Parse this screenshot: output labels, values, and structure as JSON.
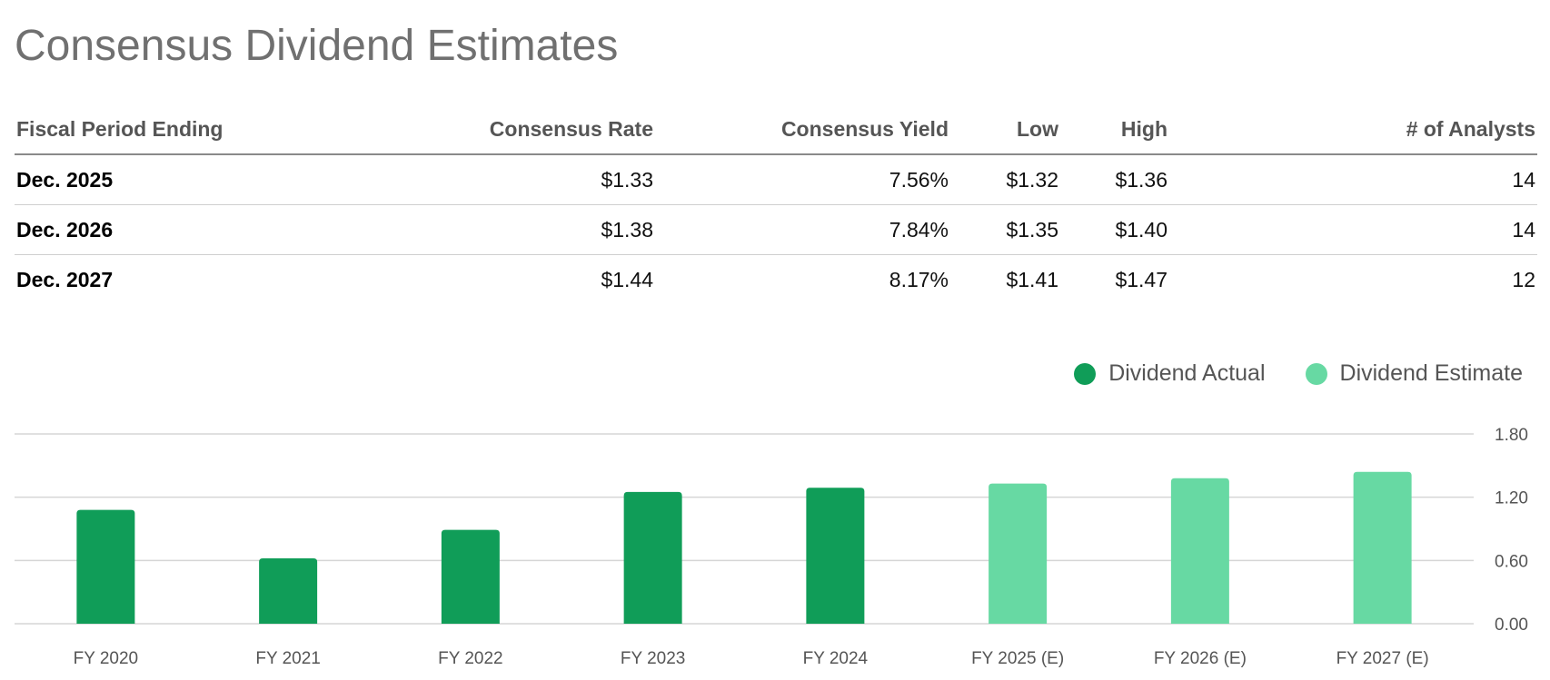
{
  "title": "Consensus Dividend Estimates",
  "table": {
    "headers": [
      "Fiscal Period Ending",
      "Consensus Rate",
      "Consensus Yield",
      "Low",
      "High",
      "# of Analysts"
    ],
    "rows": [
      [
        "Dec. 2025",
        "$1.33",
        "7.56%",
        "$1.32",
        "$1.36",
        "14"
      ],
      [
        "Dec. 2026",
        "$1.38",
        "7.84%",
        "$1.35",
        "$1.40",
        "14"
      ],
      [
        "Dec. 2027",
        "$1.44",
        "8.17%",
        "$1.41",
        "$1.47",
        "12"
      ]
    ]
  },
  "colors": {
    "actual": "#109d58",
    "estimate": "#67d9a3",
    "grid": "#d6d6d6",
    "axis_text": "#555555"
  },
  "chart_data": {
    "type": "bar",
    "categories": [
      "FY 2020",
      "FY 2021",
      "FY 2022",
      "FY 2023",
      "FY 2024",
      "FY 2025 (E)",
      "FY 2026 (E)",
      "FY 2027 (E)"
    ],
    "series": [
      {
        "name": "Dividend Actual",
        "values": [
          1.08,
          0.62,
          0.89,
          1.25,
          1.29,
          null,
          null,
          null
        ]
      },
      {
        "name": "Dividend Estimate",
        "values": [
          null,
          null,
          null,
          null,
          null,
          1.33,
          1.38,
          1.44
        ]
      }
    ],
    "y_ticks": [
      "0.00",
      "0.60",
      "1.20",
      "1.80"
    ],
    "ylim": [
      0,
      1.8
    ],
    "y_axis_side": "right",
    "grid": true,
    "legend": "top-right"
  }
}
